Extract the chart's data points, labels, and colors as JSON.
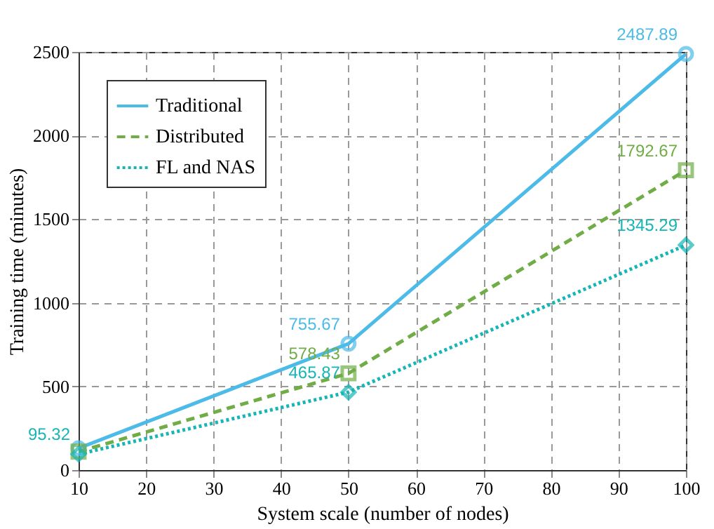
{
  "chart_data": {
    "type": "line",
    "xlabel": "System scale (number of nodes)",
    "ylabel": "Training time (minutes)",
    "x": [
      10,
      50,
      100
    ],
    "series": [
      {
        "name": "Traditional",
        "color": "#4dbbe8",
        "line_style": "solid",
        "marker": "circle",
        "values": [
          130,
          755.67,
          2487.89
        ],
        "value_labels": [
          null,
          "755.67",
          "2487.89"
        ]
      },
      {
        "name": "Distributed",
        "color": "#70ad47",
        "line_style": "dashed",
        "marker": "square",
        "values": [
          110,
          578.43,
          1792.67
        ],
        "value_labels": [
          null,
          "578.43",
          "1792.67"
        ]
      },
      {
        "name": "FL and NAS",
        "color": "#17b5b5",
        "line_style": "dotted",
        "marker": "diamond",
        "values": [
          95.32,
          465.87,
          1345.29
        ],
        "value_labels": [
          "95.32",
          "465.87",
          "1345.29"
        ]
      }
    ],
    "xlim": [
      10,
      100
    ],
    "xticks": [
      10,
      20,
      30,
      40,
      50,
      60,
      70,
      80,
      90,
      100
    ],
    "ylim": [
      0,
      2500
    ],
    "yticks": [
      0,
      500,
      1000,
      1500,
      2000,
      2500
    ],
    "grid": true,
    "legend": "top left"
  }
}
